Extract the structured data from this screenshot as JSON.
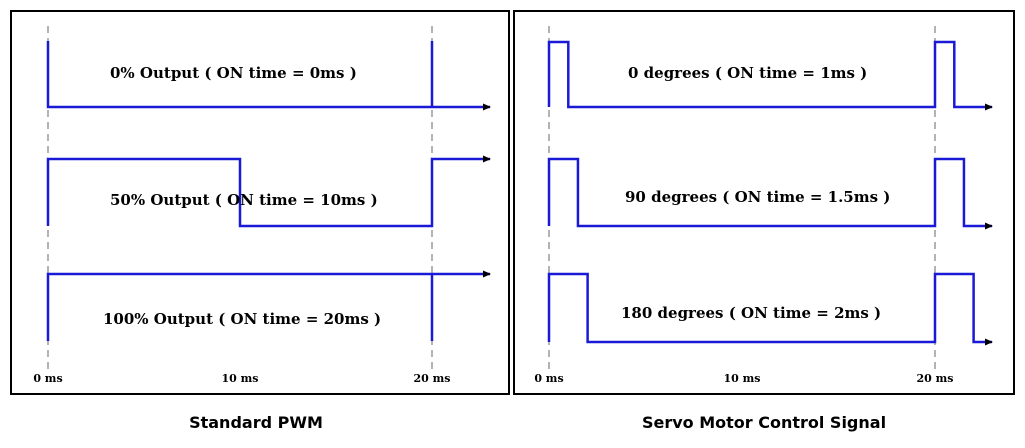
{
  "colors": {
    "signal": "#1a1ad6",
    "frame": "#000000",
    "dash": "#8a8a8a"
  },
  "panels": [
    {
      "caption": "Standard PWM",
      "ticks": [
        "0 ms",
        "10 ms",
        "20 ms"
      ],
      "signals": [
        {
          "label": "0% Output  ( ON time = 0ms )",
          "on_ms": 0
        },
        {
          "label": "50% Output ( ON time = 10ms )",
          "on_ms": 10
        },
        {
          "label": "100% Output ( ON time = 20ms )",
          "on_ms": 20
        }
      ]
    },
    {
      "caption": "Servo Motor Control Signal",
      "ticks": [
        "0 ms",
        "10 ms",
        "20 ms"
      ],
      "signals": [
        {
          "label": "0 degrees ( ON time = 1ms )",
          "on_ms": 1
        },
        {
          "label": "90 degrees ( ON time = 1.5ms )",
          "on_ms": 1.5
        },
        {
          "label": "180 degrees ( ON time = 2ms )",
          "on_ms": 2
        }
      ]
    }
  ]
}
